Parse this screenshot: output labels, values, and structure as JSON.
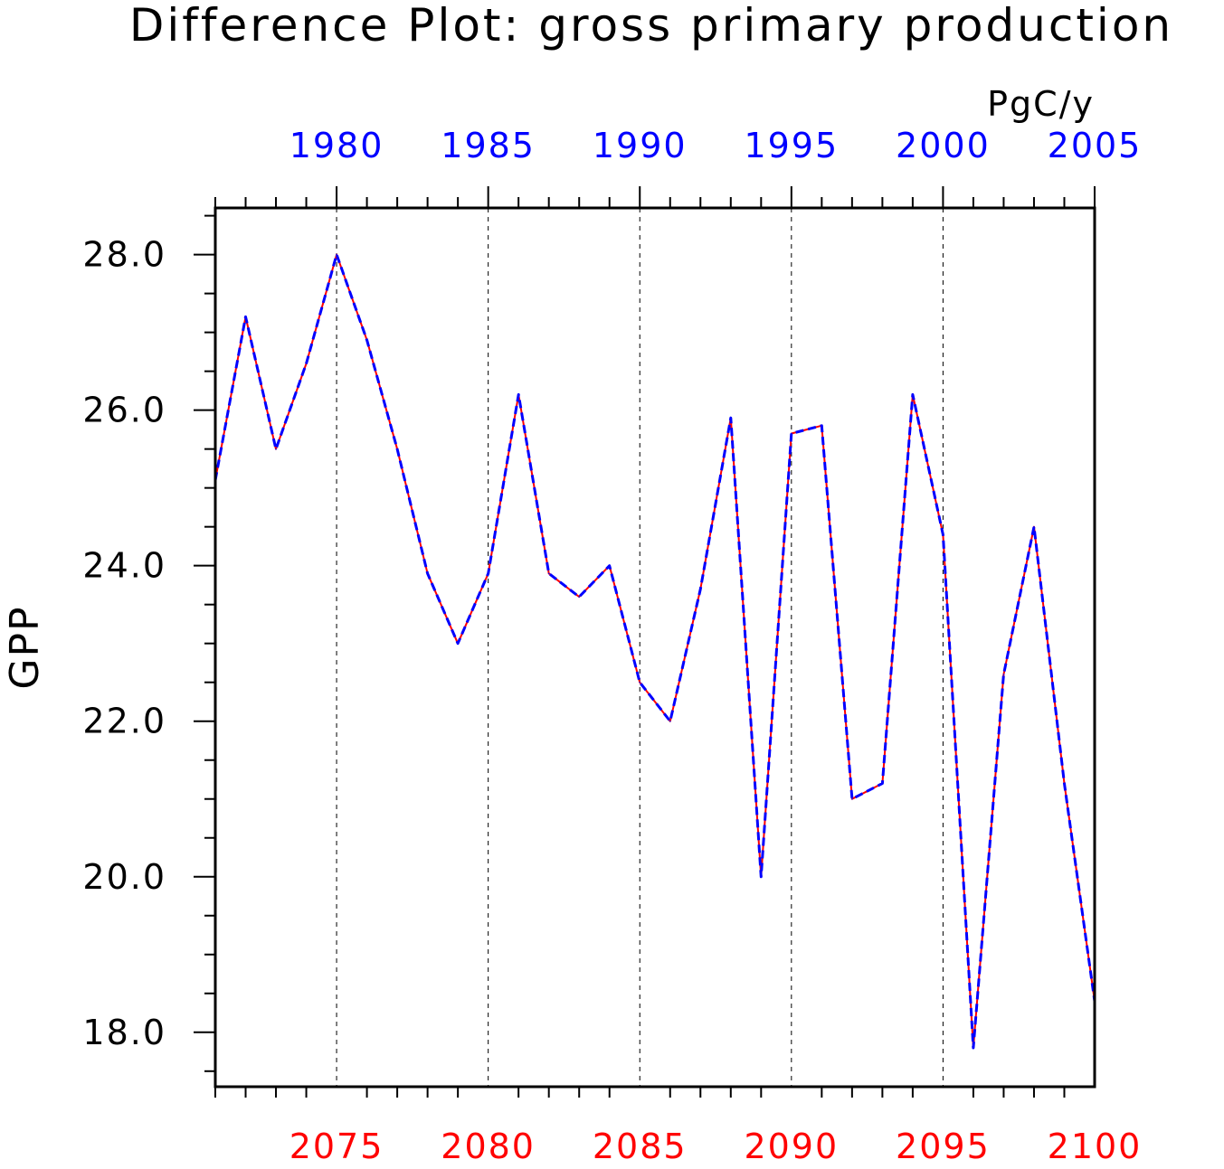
{
  "chart_data": {
    "type": "line",
    "title": "Difference Plot: gross primary production",
    "units_label": "PgC/y",
    "ylabel": "GPP",
    "ylim": [
      17.3,
      28.6
    ],
    "yticks": [
      18.0,
      20.0,
      22.0,
      24.0,
      26.0,
      28.0
    ],
    "ytick_labels": [
      "18.0",
      "20.0",
      "22.0",
      "24.0",
      "26.0",
      "28.0"
    ],
    "grid": "vertical dashed lines at major bottom-axis ticks",
    "bottom_axis": {
      "xlim": [
        2071,
        2100
      ],
      "ticks": [
        2075,
        2080,
        2085,
        2090,
        2095,
        2100
      ],
      "tick_labels": [
        "2075",
        "2080",
        "2085",
        "2090",
        "2095",
        "2100"
      ],
      "color": "#ff0000"
    },
    "top_axis": {
      "xlim": [
        1976,
        2005
      ],
      "ticks": [
        1980,
        1985,
        1990,
        1995,
        2000,
        2005
      ],
      "tick_labels": [
        "1980",
        "1985",
        "1990",
        "1995",
        "2000",
        "2005"
      ],
      "color": "#0000ff"
    },
    "x": [
      2071,
      2072,
      2073,
      2074,
      2075,
      2076,
      2077,
      2078,
      2079,
      2080,
      2081,
      2082,
      2083,
      2084,
      2085,
      2086,
      2087,
      2088,
      2089,
      2090,
      2091,
      2092,
      2093,
      2094,
      2095,
      2096,
      2097,
      2098,
      2099,
      2100
    ],
    "series": [
      {
        "color": "#ff0000",
        "style": "solid",
        "axis": "bottom",
        "values": [
          25.1,
          27.2,
          25.5,
          26.6,
          28.0,
          26.9,
          25.5,
          23.9,
          23.0,
          23.9,
          26.2,
          23.9,
          23.6,
          24.0,
          22.5,
          22.0,
          23.7,
          25.9,
          20.0,
          25.7,
          25.8,
          21.0,
          21.2,
          26.2,
          24.4,
          17.8,
          22.6,
          24.5,
          21.2,
          18.4
        ]
      },
      {
        "color": "#0000ff",
        "style": "dashed",
        "axis": "top",
        "values": [
          25.1,
          27.2,
          25.5,
          26.6,
          28.0,
          26.9,
          25.5,
          23.9,
          23.0,
          23.9,
          26.2,
          23.9,
          23.6,
          24.0,
          22.5,
          22.0,
          23.7,
          25.9,
          20.0,
          25.7,
          25.8,
          21.0,
          21.2,
          26.2,
          24.4,
          17.8,
          22.6,
          24.5,
          21.2,
          18.4
        ]
      }
    ]
  }
}
